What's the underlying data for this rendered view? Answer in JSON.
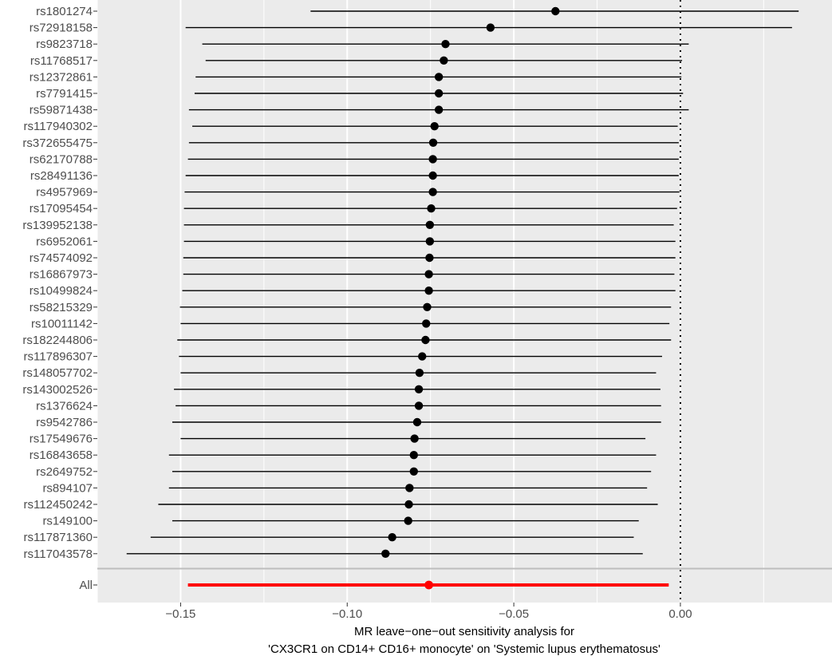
{
  "chart_data": {
    "type": "forest",
    "title": "",
    "xlabel": [
      "MR leave−one−out sensitivity analysis for",
      "'CX3CR1 on CD14+ CD16+ monocyte' on 'Systemic lupus erythematosus'"
    ],
    "ylabel": "",
    "xlim": [
      -0.175,
      0.0455
    ],
    "x_ticks": [
      -0.15,
      -0.1,
      -0.05,
      0.0
    ],
    "x_tick_labels": [
      "−0.15",
      "−0.10",
      "−0.05",
      "0.00"
    ],
    "reference_line": 0.0,
    "grid": true,
    "colors": {
      "panel": "#ebebeb",
      "grid": "#ffffff",
      "point": "#000000",
      "overall": "#ff0000",
      "separator": "#bdbdbd"
    },
    "snps": [
      {
        "label": "rs1801274",
        "b": -0.0375,
        "lo": -0.111,
        "hi": 0.0355
      },
      {
        "label": "rs72918158",
        "b": -0.057,
        "lo": -0.1485,
        "hi": 0.0335
      },
      {
        "label": "rs9823718",
        "b": -0.0705,
        "lo": -0.1435,
        "hi": 0.0025
      },
      {
        "label": "rs11768517",
        "b": -0.071,
        "lo": -0.1425,
        "hi": 0.0005
      },
      {
        "label": "rs12372861",
        "b": -0.0725,
        "lo": -0.1455,
        "hi": 0.0003
      },
      {
        "label": "rs7791415",
        "b": -0.0725,
        "lo": -0.1458,
        "hi": 0.0008
      },
      {
        "label": "rs59871438",
        "b": -0.0725,
        "lo": -0.1475,
        "hi": 0.0025
      },
      {
        "label": "rs117940302",
        "b": -0.0738,
        "lo": -0.1465,
        "hi": -0.0008
      },
      {
        "label": "rs372655475",
        "b": -0.0742,
        "lo": -0.1475,
        "hi": -0.0005
      },
      {
        "label": "rs62170788",
        "b": -0.0743,
        "lo": -0.1478,
        "hi": -0.0005
      },
      {
        "label": "rs28491136",
        "b": -0.0743,
        "lo": -0.1485,
        "hi": -0.0005
      },
      {
        "label": "rs4957969",
        "b": -0.0743,
        "lo": -0.1488,
        "hi": -0.0003
      },
      {
        "label": "rs17095454",
        "b": -0.0748,
        "lo": -0.149,
        "hi": -0.001
      },
      {
        "label": "rs139952138",
        "b": -0.0752,
        "lo": -0.149,
        "hi": -0.002
      },
      {
        "label": "rs6952061",
        "b": -0.0752,
        "lo": -0.149,
        "hi": -0.0015
      },
      {
        "label": "rs74574092",
        "b": -0.0753,
        "lo": -0.1492,
        "hi": -0.0015
      },
      {
        "label": "rs16867973",
        "b": -0.0755,
        "lo": -0.1492,
        "hi": -0.0018
      },
      {
        "label": "rs10499824",
        "b": -0.0755,
        "lo": -0.1495,
        "hi": -0.0015
      },
      {
        "label": "rs58215329",
        "b": -0.076,
        "lo": -0.1502,
        "hi": -0.0028
      },
      {
        "label": "rs10011142",
        "b": -0.0763,
        "lo": -0.15,
        "hi": -0.0033
      },
      {
        "label": "rs182244806",
        "b": -0.0765,
        "lo": -0.151,
        "hi": -0.0028
      },
      {
        "label": "rs117896307",
        "b": -0.0775,
        "lo": -0.1505,
        "hi": -0.0055
      },
      {
        "label": "rs148057702",
        "b": -0.0783,
        "lo": -0.15,
        "hi": -0.0073
      },
      {
        "label": "rs143002526",
        "b": -0.0785,
        "lo": -0.152,
        "hi": -0.006
      },
      {
        "label": "rs1376624",
        "b": -0.0785,
        "lo": -0.1515,
        "hi": -0.0058
      },
      {
        "label": "rs9542786",
        "b": -0.079,
        "lo": -0.1525,
        "hi": -0.0058
      },
      {
        "label": "rs17549676",
        "b": -0.0798,
        "lo": -0.15,
        "hi": -0.0105
      },
      {
        "label": "rs16843658",
        "b": -0.08,
        "lo": -0.1535,
        "hi": -0.0073
      },
      {
        "label": "rs2649752",
        "b": -0.08,
        "lo": -0.1525,
        "hi": -0.0088
      },
      {
        "label": "rs894107",
        "b": -0.0813,
        "lo": -0.1535,
        "hi": -0.01
      },
      {
        "label": "rs112450242",
        "b": -0.0815,
        "lo": -0.1567,
        "hi": -0.0068
      },
      {
        "label": "rs149100",
        "b": -0.0817,
        "lo": -0.1525,
        "hi": -0.0125
      },
      {
        "label": "rs117871360",
        "b": -0.0865,
        "lo": -0.159,
        "hi": -0.014
      },
      {
        "label": "rs117043578",
        "b": -0.0885,
        "lo": -0.1662,
        "hi": -0.0113
      }
    ],
    "overall": {
      "label": "All",
      "b": -0.0755,
      "lo": -0.1478,
      "hi": -0.0035
    }
  }
}
